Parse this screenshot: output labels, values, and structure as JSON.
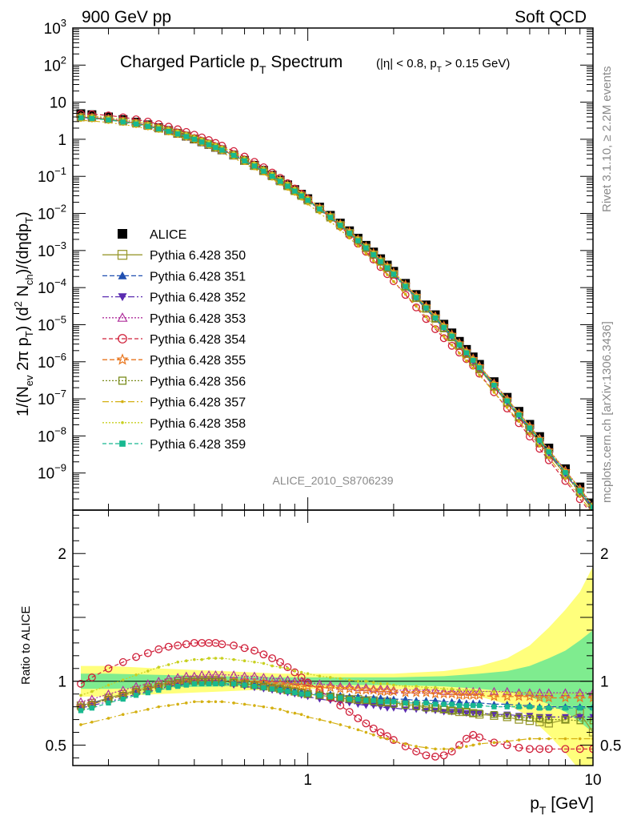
{
  "header": {
    "left": "900 GeV pp",
    "right": "Soft QCD"
  },
  "side": {
    "rivet": "Rivet 3.1.10, ≥ 2.2M events",
    "mcplots": "mcplots.cern.ch [arXiv:1306.3436]"
  },
  "analysis_id": "ALICE_2010_S8706239",
  "chart_data": [
    {
      "type": "line",
      "title_main": "Charged Particle p",
      "title_main_sub": "T",
      "title_main_tail": " Spectrum",
      "title_cut": "(|η| < 0.8, p",
      "title_cut_sub": "T",
      "title_cut_tail": " > 0.15 GeV)",
      "ylabel": "1/(N_ev 2π p_T) (d² N_ch)/(dηdp_T)",
      "yscale": "log",
      "xscale": "log",
      "xlim": [
        0.15,
        10
      ],
      "ylim": [
        1e-10,
        1000
      ],
      "yticks": [
        {
          "v": 1000,
          "mant": "10",
          "exp": "3"
        },
        {
          "v": 100,
          "mant": "10",
          "exp": "2"
        },
        {
          "v": 10,
          "mant": "10",
          "exp": ""
        },
        {
          "v": 1,
          "mant": "1",
          "exp": ""
        },
        {
          "v": 0.1,
          "mant": "10",
          "exp": "−1"
        },
        {
          "v": 0.01,
          "mant": "10",
          "exp": "−2"
        },
        {
          "v": 0.001,
          "mant": "10",
          "exp": "−3"
        },
        {
          "v": 0.0001,
          "mant": "10",
          "exp": "−4"
        },
        {
          "v": 1e-05,
          "mant": "10",
          "exp": "−5"
        },
        {
          "v": 1e-06,
          "mant": "10",
          "exp": "−6"
        },
        {
          "v": 1e-07,
          "mant": "10",
          "exp": "−7"
        },
        {
          "v": 1e-08,
          "mant": "10",
          "exp": "−8"
        },
        {
          "v": 1e-09,
          "mant": "10",
          "exp": "−9"
        }
      ],
      "legend_position": "left-middle",
      "x": [
        0.16,
        0.175,
        0.2,
        0.225,
        0.25,
        0.275,
        0.3,
        0.325,
        0.35,
        0.375,
        0.4,
        0.425,
        0.45,
        0.475,
        0.5,
        0.55,
        0.6,
        0.65,
        0.7,
        0.75,
        0.8,
        0.85,
        0.9,
        0.95,
        1.0,
        1.1,
        1.2,
        1.3,
        1.4,
        1.5,
        1.6,
        1.7,
        1.8,
        1.9,
        2.0,
        2.2,
        2.4,
        2.6,
        2.8,
        3.0,
        3.2,
        3.4,
        3.6,
        3.8,
        4.0,
        4.5,
        5.0,
        5.5,
        6.0,
        6.5,
        7.0,
        8.0,
        9.0,
        10.0
      ],
      "alice": [
        4.9,
        4.6,
        4.0,
        3.4,
        2.9,
        2.45,
        2.05,
        1.72,
        1.45,
        1.22,
        1.02,
        0.86,
        0.73,
        0.61,
        0.52,
        0.375,
        0.27,
        0.198,
        0.145,
        0.107,
        0.079,
        0.059,
        0.044,
        0.033,
        0.025,
        0.0148,
        0.0089,
        0.0055,
        0.0034,
        0.00215,
        0.00138,
        0.00091,
        0.0006,
        0.000405,
        0.000275,
        0.00013,
        6.5e-05,
        3.4e-05,
        1.85e-05,
        1.03e-05,
        6e-06,
        3.55e-06,
        2.15e-06,
        1.35e-06,
        8.5e-07,
        2.9e-07,
        1.1e-07,
        4.6e-08,
        2.05e-08,
        9.6e-09,
        4.7e-09,
        1.3e-09,
        4.2e-10,
        1.5e-10
      ],
      "series": [
        {
          "name": "ALICE",
          "color": "#000000",
          "marker": "square-filled",
          "dash": "",
          "y": "alice"
        },
        {
          "name": "Pythia 6.428 350",
          "color": "#9a9a30",
          "marker": "square-open",
          "dash": "",
          "ratio": [
            0.81,
            0.83,
            0.87,
            0.9,
            0.93,
            0.95,
            0.97,
            0.99,
            1.0,
            1.01,
            1.01,
            1.01,
            1.01,
            1.01,
            1.0,
            0.99,
            0.98,
            0.97,
            0.96,
            0.95,
            0.94,
            0.93,
            0.92,
            0.91,
            0.9,
            0.89,
            0.88,
            0.87,
            0.86,
            0.86,
            0.85,
            0.85,
            0.84,
            0.84,
            0.83,
            0.82,
            0.81,
            0.8,
            0.79,
            0.78,
            0.77,
            0.76,
            0.76,
            0.75,
            0.74,
            0.73,
            0.72,
            0.7,
            0.69,
            0.68,
            0.67,
            0.7,
            0.75,
            0.6
          ]
        },
        {
          "name": "Pythia 6.428 351",
          "color": "#1f4fb0",
          "marker": "triangle-up-filled",
          "dash": "6,3",
          "ratio": [
            0.81,
            0.83,
            0.86,
            0.89,
            0.92,
            0.94,
            0.96,
            0.98,
            0.99,
            1.0,
            1.0,
            1.0,
            1.0,
            1.0,
            1.0,
            0.99,
            0.99,
            0.98,
            0.97,
            0.96,
            0.95,
            0.94,
            0.93,
            0.92,
            0.91,
            0.9,
            0.9,
            0.89,
            0.88,
            0.88,
            0.87,
            0.87,
            0.87,
            0.86,
            0.86,
            0.86,
            0.85,
            0.85,
            0.85,
            0.84,
            0.84,
            0.84,
            0.83,
            0.83,
            0.83,
            0.82,
            0.82,
            0.81,
            0.81,
            0.8,
            0.8,
            0.8,
            0.8,
            0.8
          ]
        },
        {
          "name": "Pythia 6.428 352",
          "color": "#5b2cb0",
          "marker": "triangle-down-filled",
          "dash": "8,3,2,3",
          "ratio": [
            0.79,
            0.81,
            0.84,
            0.87,
            0.9,
            0.92,
            0.94,
            0.96,
            0.97,
            0.98,
            0.99,
            0.99,
            0.99,
            0.99,
            0.98,
            0.97,
            0.96,
            0.95,
            0.94,
            0.93,
            0.92,
            0.91,
            0.9,
            0.89,
            0.88,
            0.86,
            0.85,
            0.84,
            0.83,
            0.82,
            0.81,
            0.81,
            0.8,
            0.79,
            0.79,
            0.78,
            0.78,
            0.77,
            0.77,
            0.76,
            0.76,
            0.76,
            0.75,
            0.75,
            0.75,
            0.74,
            0.74,
            0.73,
            0.73,
            0.72,
            0.72,
            0.72,
            0.72,
            0.72
          ]
        },
        {
          "name": "Pythia 6.428 353",
          "color": "#b0309c",
          "marker": "triangle-up-open",
          "dash": "2,2",
          "ratio": [
            0.84,
            0.86,
            0.9,
            0.93,
            0.96,
            0.98,
            1.0,
            1.02,
            1.03,
            1.04,
            1.04,
            1.05,
            1.05,
            1.05,
            1.05,
            1.05,
            1.04,
            1.04,
            1.03,
            1.02,
            1.02,
            1.01,
            1.0,
            1.0,
            0.99,
            0.98,
            0.97,
            0.96,
            0.96,
            0.95,
            0.95,
            0.94,
            0.94,
            0.94,
            0.93,
            0.93,
            0.93,
            0.93,
            0.93,
            0.92,
            0.92,
            0.92,
            0.92,
            0.92,
            0.92,
            0.92,
            0.92,
            0.91,
            0.91,
            0.91,
            0.91,
            0.91,
            0.91,
            0.91
          ]
        },
        {
          "name": "Pythia 6.428 354",
          "color": "#d0203a",
          "marker": "circle-open",
          "dash": "5,3",
          "ratio": [
            0.98,
            1.03,
            1.1,
            1.15,
            1.19,
            1.22,
            1.25,
            1.27,
            1.28,
            1.29,
            1.3,
            1.3,
            1.3,
            1.3,
            1.29,
            1.28,
            1.26,
            1.24,
            1.21,
            1.18,
            1.15,
            1.11,
            1.07,
            1.03,
            0.99,
            0.93,
            0.87,
            0.81,
            0.76,
            0.71,
            0.67,
            0.63,
            0.6,
            0.57,
            0.54,
            0.49,
            0.45,
            0.42,
            0.41,
            0.42,
            0.45,
            0.5,
            0.55,
            0.58,
            0.56,
            0.52,
            0.5,
            0.48,
            0.47,
            0.47,
            0.47,
            0.47,
            0.47,
            0.47
          ]
        },
        {
          "name": "Pythia 6.428 355",
          "color": "#e8761e",
          "marker": "star-open",
          "dash": "6,3",
          "ratio": [
            0.8,
            0.82,
            0.86,
            0.89,
            0.92,
            0.94,
            0.96,
            0.97,
            0.98,
            0.99,
            1.0,
            1.0,
            1.0,
            1.0,
            1.0,
            1.0,
            1.0,
            0.99,
            0.99,
            0.98,
            0.98,
            0.97,
            0.97,
            0.96,
            0.96,
            0.95,
            0.95,
            0.94,
            0.94,
            0.93,
            0.93,
            0.93,
            0.92,
            0.92,
            0.92,
            0.91,
            0.91,
            0.91,
            0.9,
            0.9,
            0.9,
            0.89,
            0.89,
            0.89,
            0.89,
            0.88,
            0.88,
            0.88,
            0.88,
            0.87,
            0.87,
            0.87,
            0.87,
            0.87
          ]
        },
        {
          "name": "Pythia 6.428 356",
          "color": "#7a8c1c",
          "marker": "square-open-small",
          "dash": "2,2",
          "ratio": [
            0.8,
            0.82,
            0.86,
            0.89,
            0.92,
            0.94,
            0.96,
            0.98,
            0.99,
            1.0,
            1.0,
            1.0,
            1.0,
            1.0,
            1.0,
            0.99,
            0.98,
            0.97,
            0.96,
            0.95,
            0.94,
            0.93,
            0.92,
            0.91,
            0.9,
            0.89,
            0.88,
            0.87,
            0.86,
            0.85,
            0.85,
            0.84,
            0.83,
            0.83,
            0.82,
            0.81,
            0.8,
            0.79,
            0.79,
            0.78,
            0.77,
            0.77,
            0.76,
            0.75,
            0.75,
            0.74,
            0.73,
            0.72,
            0.71,
            0.71,
            0.7,
            0.7,
            0.69,
            0.69
          ]
        },
        {
          "name": "Pythia 6.428 357",
          "color": "#d4b012",
          "marker": "dot",
          "dash": "8,3,2,3",
          "ratio": [
            0.66,
            0.68,
            0.71,
            0.74,
            0.76,
            0.78,
            0.8,
            0.81,
            0.82,
            0.83,
            0.84,
            0.84,
            0.84,
            0.84,
            0.84,
            0.83,
            0.82,
            0.81,
            0.8,
            0.79,
            0.78,
            0.76,
            0.75,
            0.74,
            0.72,
            0.7,
            0.68,
            0.66,
            0.64,
            0.62,
            0.6,
            0.58,
            0.56,
            0.55,
            0.53,
            0.51,
            0.49,
            0.48,
            0.47,
            0.47,
            0.47,
            0.48,
            0.49,
            0.5,
            0.51,
            0.52,
            0.53,
            0.54,
            0.55,
            0.55,
            0.55,
            0.55,
            0.55,
            0.55
          ]
        },
        {
          "name": "Pythia 6.428 358",
          "color": "#c8d020",
          "marker": "dot",
          "dash": "2,2",
          "ratio": [
            0.89,
            0.92,
            0.97,
            1.01,
            1.05,
            1.08,
            1.11,
            1.13,
            1.15,
            1.16,
            1.17,
            1.17,
            1.18,
            1.18,
            1.18,
            1.17,
            1.16,
            1.15,
            1.14,
            1.12,
            1.11,
            1.1,
            1.08,
            1.07,
            1.06,
            1.04,
            1.03,
            1.02,
            1.01,
            1.0,
            1.0,
            0.99,
            0.98,
            0.98,
            0.97,
            0.96,
            0.96,
            0.95,
            0.95,
            0.94,
            0.94,
            0.93,
            0.93,
            0.93,
            0.92,
            0.92,
            0.91,
            0.91,
            0.91,
            0.9,
            0.9,
            0.9,
            0.9,
            0.9
          ]
        },
        {
          "name": "Pythia 6.428 359",
          "color": "#18b890",
          "marker": "square-filled-small",
          "dash": "5,3",
          "ratio": [
            0.77,
            0.79,
            0.83,
            0.86,
            0.89,
            0.91,
            0.93,
            0.95,
            0.96,
            0.97,
            0.98,
            0.98,
            0.98,
            0.98,
            0.98,
            0.98,
            0.97,
            0.96,
            0.95,
            0.94,
            0.93,
            0.92,
            0.91,
            0.9,
            0.9,
            0.89,
            0.88,
            0.87,
            0.86,
            0.86,
            0.85,
            0.85,
            0.84,
            0.84,
            0.84,
            0.83,
            0.83,
            0.83,
            0.82,
            0.82,
            0.82,
            0.81,
            0.81,
            0.81,
            0.81,
            0.8,
            0.8,
            0.8,
            0.8,
            0.79,
            0.79,
            0.79,
            0.79,
            0.79
          ]
        }
      ]
    },
    {
      "type": "line",
      "ylabel": "Ratio to ALICE",
      "xlabel": "p_T [GeV]",
      "xlim": [
        0.15,
        10
      ],
      "ylim": [
        0.34,
        2.34
      ],
      "yticks": [
        0.5,
        1,
        2
      ],
      "xticks": [
        1,
        10
      ],
      "reference_line": 1,
      "band_colors": {
        "stat": "#7fec8f",
        "syst": "#ffff7c"
      },
      "bands_note": "shaded uncertainty bands around 1",
      "band_x": [
        0.16,
        0.2,
        0.3,
        0.5,
        0.8,
        1.0,
        1.5,
        2.0,
        3.0,
        4.0,
        5.0,
        6.0,
        7.0,
        8.0,
        9.0,
        10.0
      ],
      "band_stat": [
        0.06,
        0.06,
        0.05,
        0.04,
        0.03,
        0.03,
        0.03,
        0.03,
        0.04,
        0.06,
        0.08,
        0.12,
        0.18,
        0.24,
        0.32,
        0.4
      ],
      "band_syst": [
        0.12,
        0.12,
        0.1,
        0.08,
        0.06,
        0.06,
        0.06,
        0.06,
        0.08,
        0.12,
        0.18,
        0.28,
        0.42,
        0.56,
        0.7,
        0.9
      ]
    }
  ]
}
